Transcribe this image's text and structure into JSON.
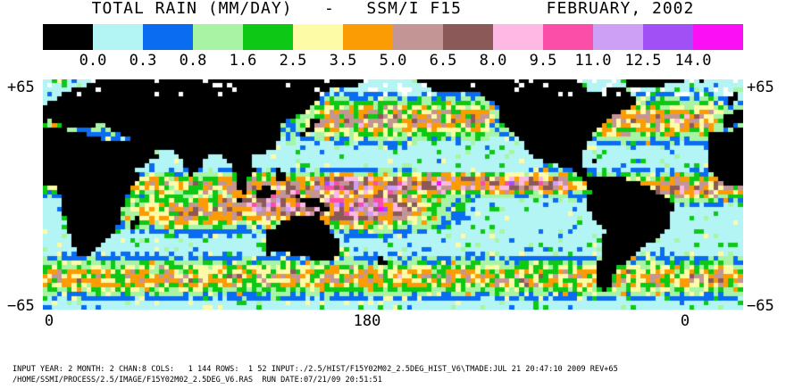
{
  "title": "TOTAL RAIN (MM/DAY)   -   SSM/I F15        FEBRUARY, 2002",
  "colorbar": {
    "labels": [
      "0.0",
      "0.3",
      "0.8",
      "1.6",
      "2.5",
      "3.5",
      "5.0",
      "6.5",
      "8.0",
      "9.5",
      "11.0",
      "12.5",
      "14.0"
    ],
    "colors": [
      "#000000",
      "#b3f5f5",
      "#0a6cf0",
      "#a7f5a4",
      "#0dc915",
      "#fdfba6",
      "#fb9c05",
      "#c49595",
      "#8c5959",
      "#fdb9e3",
      "#fb4ea9",
      "#cd9ff5",
      "#a050f5",
      "#fb10f5"
    ],
    "land_color": "#000000",
    "missing_color": "#ffffff"
  },
  "map": {
    "lat_top": "+65",
    "lat_bottom": "−65",
    "lon_ticks": [
      "0",
      "180",
      "0"
    ],
    "lat_range": [
      -65,
      65
    ],
    "lon_range": [
      0,
      360
    ],
    "grid_resolution_deg": 2.5
  },
  "footer": {
    "line1": "INPUT YEAR: 2 MONTH: 2 CHAN:8 COLS:   1 144 ROWS:  1 52 INPUT:./2.5/HIST/F15Y02M02_2.5DEG_HIST_V6\\TMADE:JUL 21 20:47:10 2009 REV+65",
    "line2": "/HOME/SSMI/PROCESS/2.5/IMAGE/F15Y02M02_2.5DEG_V6.RAS  RUN DATE:07/21/09 20:51:51"
  }
}
